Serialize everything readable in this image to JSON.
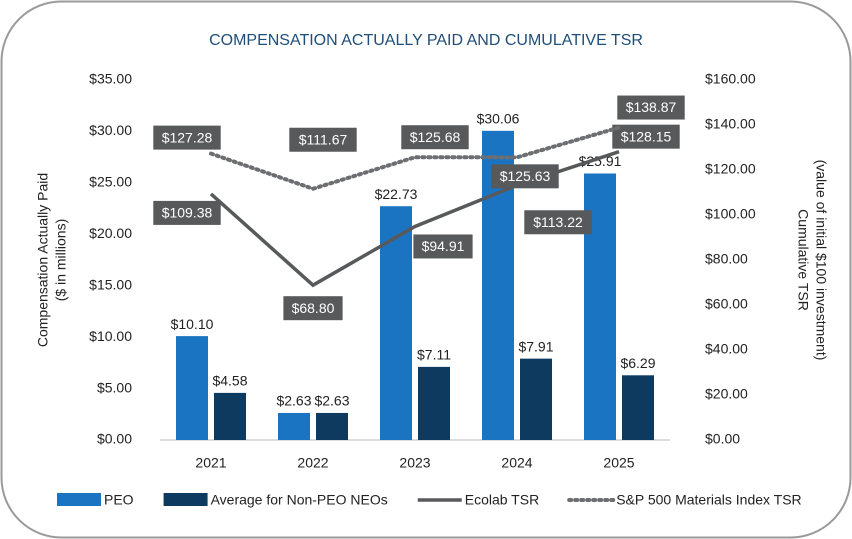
{
  "chart_data": {
    "type": "bar-line",
    "title": "COMPENSATION ACTUALLY PAID AND CUMULATIVE TSR",
    "y_label": [
      "Compensation Actually Paid",
      "($ in millions)"
    ],
    "y2_label": [
      "Cumulative TSR",
      "(value of initial $100 investment)"
    ],
    "categories": [
      "2021",
      "2022",
      "2023",
      "2024",
      "2025"
    ],
    "ylim": [
      0,
      35
    ],
    "yticks": [
      {
        "value": 0,
        "label": "$0.00"
      },
      {
        "value": 5,
        "label": "$5.00"
      },
      {
        "value": 10,
        "label": "$10.00"
      },
      {
        "value": 15,
        "label": "$15.00"
      },
      {
        "value": 20,
        "label": "$20.00"
      },
      {
        "value": 25,
        "label": "$25.00"
      },
      {
        "value": 30,
        "label": "$30.00"
      },
      {
        "value": 35,
        "label": "$35.00"
      }
    ],
    "y2lim": [
      0,
      160
    ],
    "y2ticks": [
      {
        "value": 0,
        "label": "$0.00"
      },
      {
        "value": 20,
        "label": "$20.00"
      },
      {
        "value": 40,
        "label": "$40.00"
      },
      {
        "value": 60,
        "label": "$60.00"
      },
      {
        "value": 80,
        "label": "$80.00"
      },
      {
        "value": 100,
        "label": "$100.00"
      },
      {
        "value": 120,
        "label": "$120.00"
      },
      {
        "value": 140,
        "label": "$140.00"
      },
      {
        "value": 160,
        "label": "$160.00"
      }
    ],
    "series": [
      {
        "name": "PEO",
        "type": "bar",
        "color": "#1a74c2",
        "values": [
          10.1,
          2.63,
          22.73,
          30.06,
          25.91
        ],
        "value_labels": [
          "$10.10",
          "$2.63",
          "$22.73",
          "$30.06",
          "$25.91"
        ]
      },
      {
        "name": "Average for Non-PEO NEOs",
        "type": "bar",
        "color": "#0f3a60",
        "values": [
          4.58,
          2.63,
          7.11,
          7.91,
          6.29
        ],
        "value_labels": [
          "$4.58",
          "$2.63",
          "$7.11",
          "$7.91",
          "$6.29"
        ]
      },
      {
        "name": "Ecolab TSR",
        "type": "line",
        "axis": "y2",
        "color": "#58595b",
        "values": [
          109.38,
          68.8,
          94.91,
          113.22,
          128.15
        ],
        "value_labels": [
          "$109.38",
          "$68.80",
          "$94.91",
          "$113.22",
          "$128.15"
        ]
      },
      {
        "name": "S&P 500 Materials Index TSR",
        "type": "line",
        "axis": "y2",
        "dash": "dotted",
        "color": "#6d6e71",
        "values": [
          127.28,
          111.67,
          125.68,
          125.63,
          138.87
        ],
        "value_labels": [
          "$127.28",
          "$111.67",
          "$125.68",
          "$125.63",
          "$138.87"
        ]
      }
    ]
  }
}
